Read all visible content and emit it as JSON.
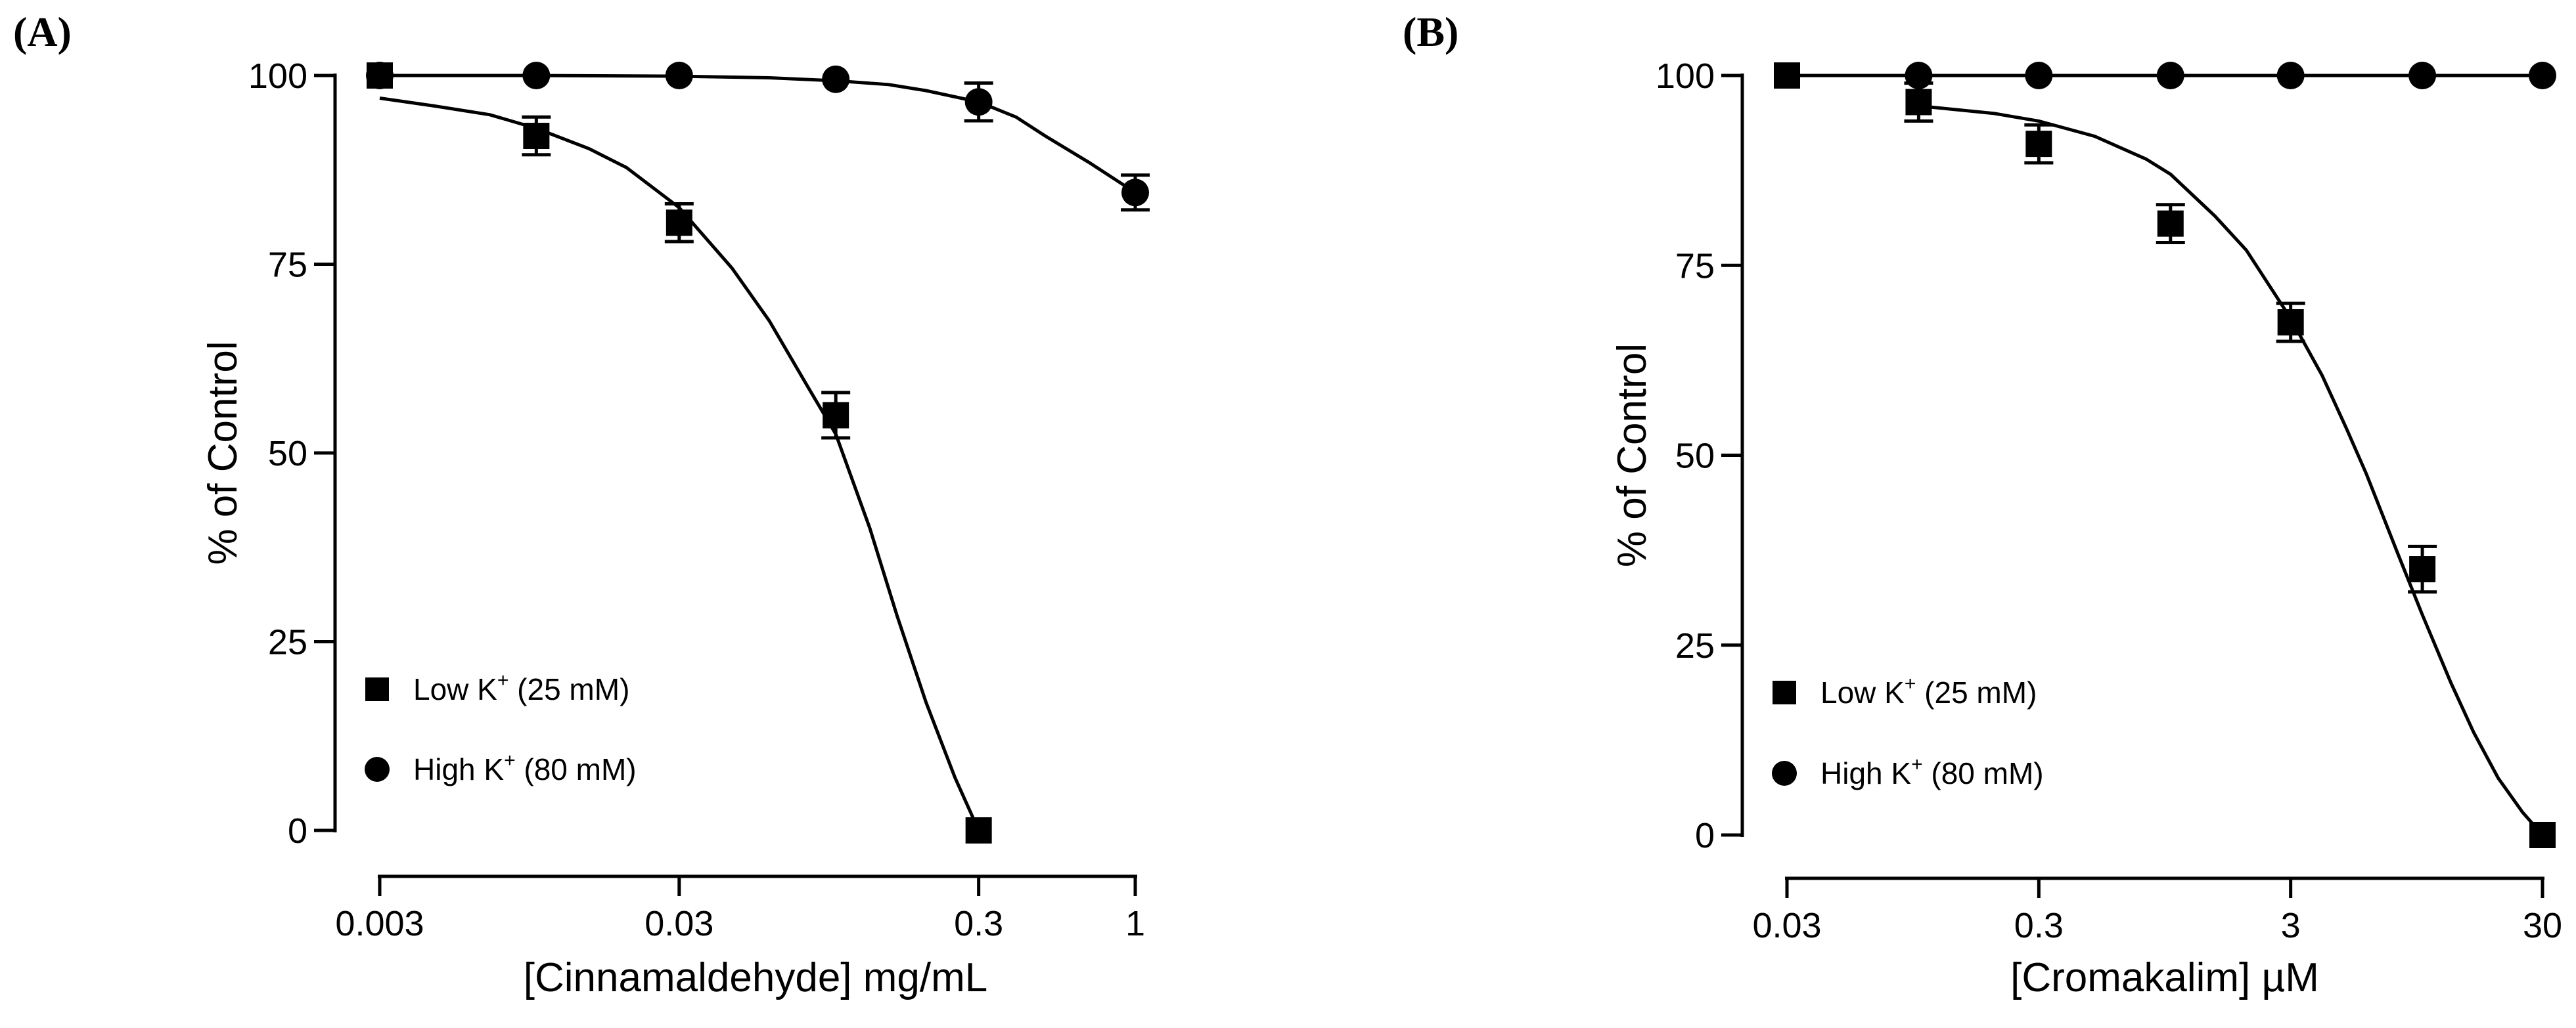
{
  "chart_data": [
    {
      "type": "scatter",
      "panel_label": "(A)",
      "xscale": "log",
      "xlim": [
        0.003,
        1
      ],
      "ylim": [
        0,
        100
      ],
      "xticks": [
        0.003,
        0.03,
        0.3,
        1
      ],
      "xtick_labels": [
        "0.003",
        "0.03",
        "0.3",
        "1"
      ],
      "yticks": [
        0,
        25,
        50,
        75,
        100
      ],
      "ytick_labels": [
        "0",
        "25",
        "50",
        "75",
        "100"
      ],
      "xlabel": "[Cinnamaldehyde] mg/mL",
      "ylabel": "% of Control",
      "legend_position": "lower-left",
      "series": [
        {
          "name": "Low K",
          "name_sup": "+",
          "name_suffix": " (25 mM)",
          "marker": "square",
          "x": [
            0.003,
            0.01,
            0.03,
            0.1,
            0.3
          ],
          "y": [
            100,
            92,
            80.5,
            55,
            0
          ],
          "err": [
            0,
            2.5,
            2.5,
            3,
            0
          ],
          "fit": {
            "x": [
              0.003,
              0.0045,
              0.007,
              0.01,
              0.015,
              0.02,
              0.03,
              0.045,
              0.06,
              0.08,
              0.1,
              0.13,
              0.16,
              0.2,
              0.25,
              0.3
            ],
            "y": [
              97,
              96,
              94.8,
              93,
              90.3,
              87.8,
              82.5,
              74.5,
              67.5,
              59,
              52.5,
              40,
              28.5,
              17,
              7,
              0
            ]
          }
        },
        {
          "name": "High K",
          "name_sup": "+",
          "name_suffix": " (80 mM)",
          "marker": "circle",
          "x": [
            0.003,
            0.01,
            0.03,
            0.1,
            0.3,
            1
          ],
          "y": [
            100,
            100,
            100,
            99.5,
            96.5,
            84.5
          ],
          "err": [
            0,
            0,
            0,
            0,
            2.5,
            2.3
          ],
          "fit": {
            "x": [
              0.003,
              0.01,
              0.03,
              0.06,
              0.1,
              0.15,
              0.2,
              0.3,
              0.4,
              0.5,
              0.7,
              1
            ],
            "y": [
              100,
              100,
              99.9,
              99.7,
              99.3,
              98.8,
              98,
              96.5,
              94.5,
              92,
              88.5,
              84.5
            ]
          }
        }
      ]
    },
    {
      "type": "scatter",
      "panel_label": "(B)",
      "xscale": "log",
      "xlim": [
        0.03,
        30
      ],
      "ylim": [
        0,
        100
      ],
      "xticks": [
        0.03,
        0.3,
        3,
        30
      ],
      "xtick_labels": [
        "0.03",
        "0.3",
        "3",
        "30"
      ],
      "yticks": [
        0,
        25,
        50,
        75,
        100
      ],
      "ytick_labels": [
        "0",
        "25",
        "50",
        "75",
        "100"
      ],
      "xlabel": "[Cromakalim] µM",
      "ylabel": "% of Control",
      "legend_position": "lower-left",
      "series": [
        {
          "name": "Low K",
          "name_sup": "+",
          "name_suffix": " (25 mM)",
          "marker": "square",
          "x": [
            0.03,
            0.1,
            0.3,
            1,
            3,
            10,
            30
          ],
          "y": [
            100,
            96.5,
            91,
            80.5,
            67.5,
            35,
            0
          ],
          "err": [
            0,
            2.5,
            2.5,
            2.5,
            2.5,
            3,
            0
          ],
          "fit": {
            "x": [
              0.1,
              0.2,
              0.3,
              0.5,
              0.8,
              1,
              1.5,
              2,
              3,
              4,
              5,
              6,
              8,
              10,
              13,
              16,
              20,
              25,
              30
            ],
            "y": [
              96,
              95,
              94,
              92,
              89,
              87,
              81.5,
              77,
              68,
              60.5,
              53.5,
              47.5,
              37,
              29,
              20,
              13.5,
              7.5,
              3,
              0
            ]
          }
        },
        {
          "name": "High K",
          "name_sup": "+",
          "name_suffix": " (80 mM)",
          "marker": "circle",
          "x": [
            0.1,
            0.3,
            1,
            3,
            10,
            30
          ],
          "y": [
            100,
            100,
            100,
            100,
            100,
            100
          ],
          "err": [
            0,
            0,
            0,
            0,
            0,
            0
          ],
          "fit": {
            "x": [
              0.03,
              30
            ],
            "y": [
              100,
              100
            ]
          }
        }
      ]
    }
  ]
}
